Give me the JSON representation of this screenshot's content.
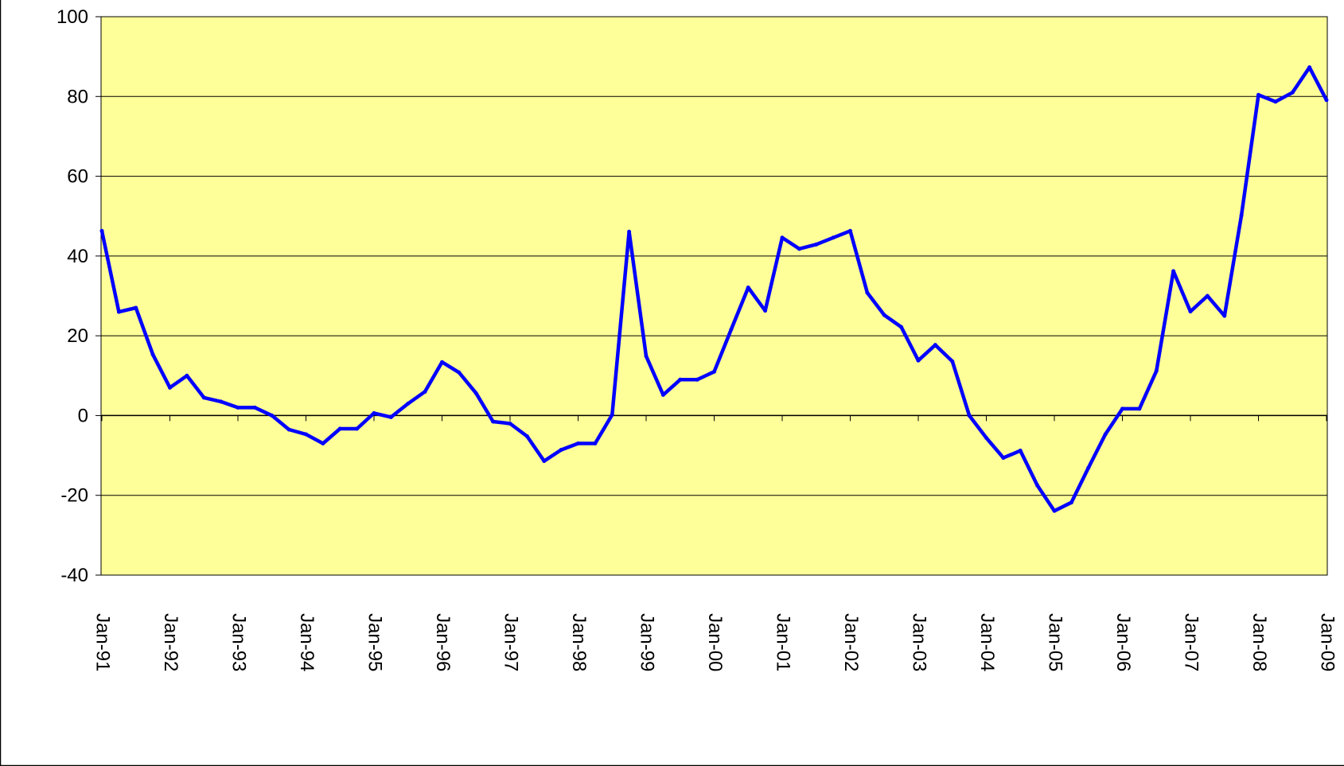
{
  "chart_data": {
    "type": "line",
    "categories": [
      "Jan-91",
      null,
      null,
      null,
      "Jan-92",
      null,
      null,
      null,
      "Jan-93",
      null,
      null,
      null,
      "Jan-94",
      null,
      null,
      null,
      "Jan-95",
      null,
      null,
      null,
      "Jan-96",
      null,
      null,
      null,
      "Jan-97",
      null,
      null,
      null,
      "Jan-98",
      null,
      null,
      null,
      "Jan-99",
      null,
      null,
      null,
      "Jan-00",
      null,
      null,
      null,
      "Jan-01",
      null,
      null,
      null,
      "Jan-02",
      null,
      null,
      null,
      "Jan-03",
      null,
      null,
      null,
      "Jan-04",
      null,
      null,
      null,
      "Jan-05",
      null,
      null,
      null,
      "Jan-06",
      null,
      null,
      null,
      "Jan-07",
      null,
      null,
      null,
      "Jan-08",
      null,
      null,
      null,
      "Jan-09"
    ],
    "values": [
      46.3,
      26,
      27,
      15.3,
      7,
      10,
      4.5,
      3.5,
      2,
      2,
      0,
      -3.5,
      -4.7,
      -7,
      -3.3,
      -3.3,
      0.6,
      -0.4,
      3,
      6,
      13.4,
      10.8,
      5.6,
      -1.5,
      -2,
      -5.2,
      -11.4,
      -8.6,
      -7,
      -7,
      0.2,
      46.1,
      14.9,
      5.2,
      9,
      9,
      11,
      21.6,
      32.1,
      26.3,
      44.6,
      41.8,
      42.9,
      44.6,
      46.3,
      30.8,
      25.2,
      22.2,
      13.8,
      17.7,
      13.6,
      0,
      -5.6,
      -10.6,
      -8.8,
      -17.5,
      -23.9,
      -21.8,
      -13.1,
      -4.7,
      1.7,
      1.7,
      11.2,
      36.2,
      26.1,
      30,
      25,
      50.2,
      80.4,
      78.7,
      81,
      87.3,
      79.1
    ],
    "color": "#0000ff",
    "plot_background": "#ffff99",
    "ylim": [
      -40,
      100
    ],
    "yticks": [
      -40,
      -20,
      0,
      20,
      40,
      60,
      80,
      100
    ],
    "grid": true
  }
}
